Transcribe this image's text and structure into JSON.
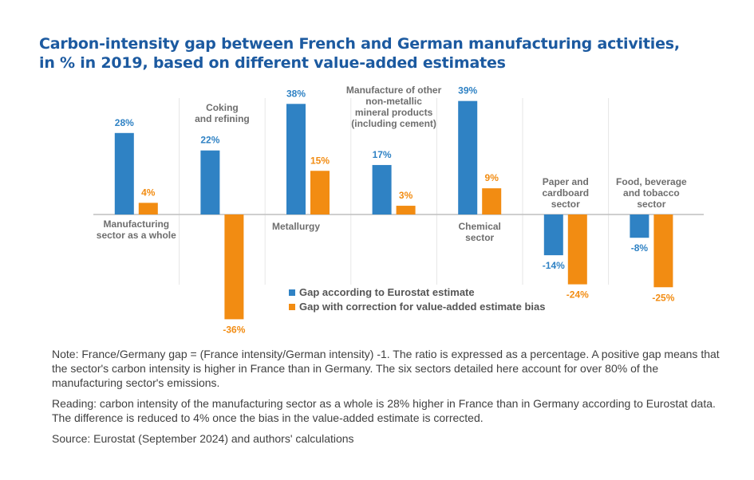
{
  "title_lines": [
    "Carbon-intensity gap between French and German manufacturing activities,",
    "in % in 2019, based on different value-added estimates"
  ],
  "chart_data": {
    "type": "bar",
    "title": "Carbon-intensity gap between French and German manufacturing activities, in % in 2019, based on different value-added estimates",
    "unit": "%",
    "categories": [
      "Manufacturing sector as a whole",
      "Coking and refining",
      "Metallurgy",
      "Manufacture of other non-metallic mineral products (including cement)",
      "Chemical sector",
      "Paper and cardboard sector",
      "Food, beverage and tobacco sector"
    ],
    "category_label_lines": [
      [
        "Manufacturing",
        "sector as a whole"
      ],
      [
        "Coking",
        "and refining"
      ],
      [
        "Metallurgy"
      ],
      [
        "Manufacture of other",
        "non-metallic",
        "mineral products",
        "(including cement)"
      ],
      [
        "Chemical",
        "sector"
      ],
      [
        "Paper and",
        "cardboard",
        "sector"
      ],
      [
        "Food, beverage",
        "and tobacco",
        "sector"
      ]
    ],
    "series": [
      {
        "name": "Gap according to Eurostat estimate",
        "color": "#2f82c4",
        "values": [
          28,
          22,
          38,
          17,
          39,
          -14,
          -8
        ],
        "labels": [
          "28%",
          "22%",
          "38%",
          "17%",
          "39%",
          "-14%",
          "-8%"
        ]
      },
      {
        "name": "Gap with correction for value-added estimate bias",
        "color": "#f28c12",
        "values": [
          4,
          -36,
          15,
          3,
          9,
          -24,
          -25
        ],
        "labels": [
          "4%",
          "-36%",
          "15%",
          "3%",
          "9%",
          "-24%",
          "-25%"
        ]
      }
    ],
    "ylim": [
      -40,
      40
    ],
    "grid": false,
    "legend_position": "bottom-center"
  },
  "notes": {
    "note": "Note: France/Germany gap = (France intensity/German intensity) -1. The ratio is expressed as a percentage. A positive gap means that the sector's carbon intensity is higher in France than in Germany. The six sectors detailed here account for over 80% of the manufacturing sector's emissions.",
    "reading": "Reading: carbon intensity of the manufacturing sector as a whole is 28% higher in France than in Germany according to Eurostat data. The difference is reduced to 4% once the bias in the value-added estimate is corrected.",
    "source": "Source: Eurostat (September 2024) and authors' calculations"
  }
}
